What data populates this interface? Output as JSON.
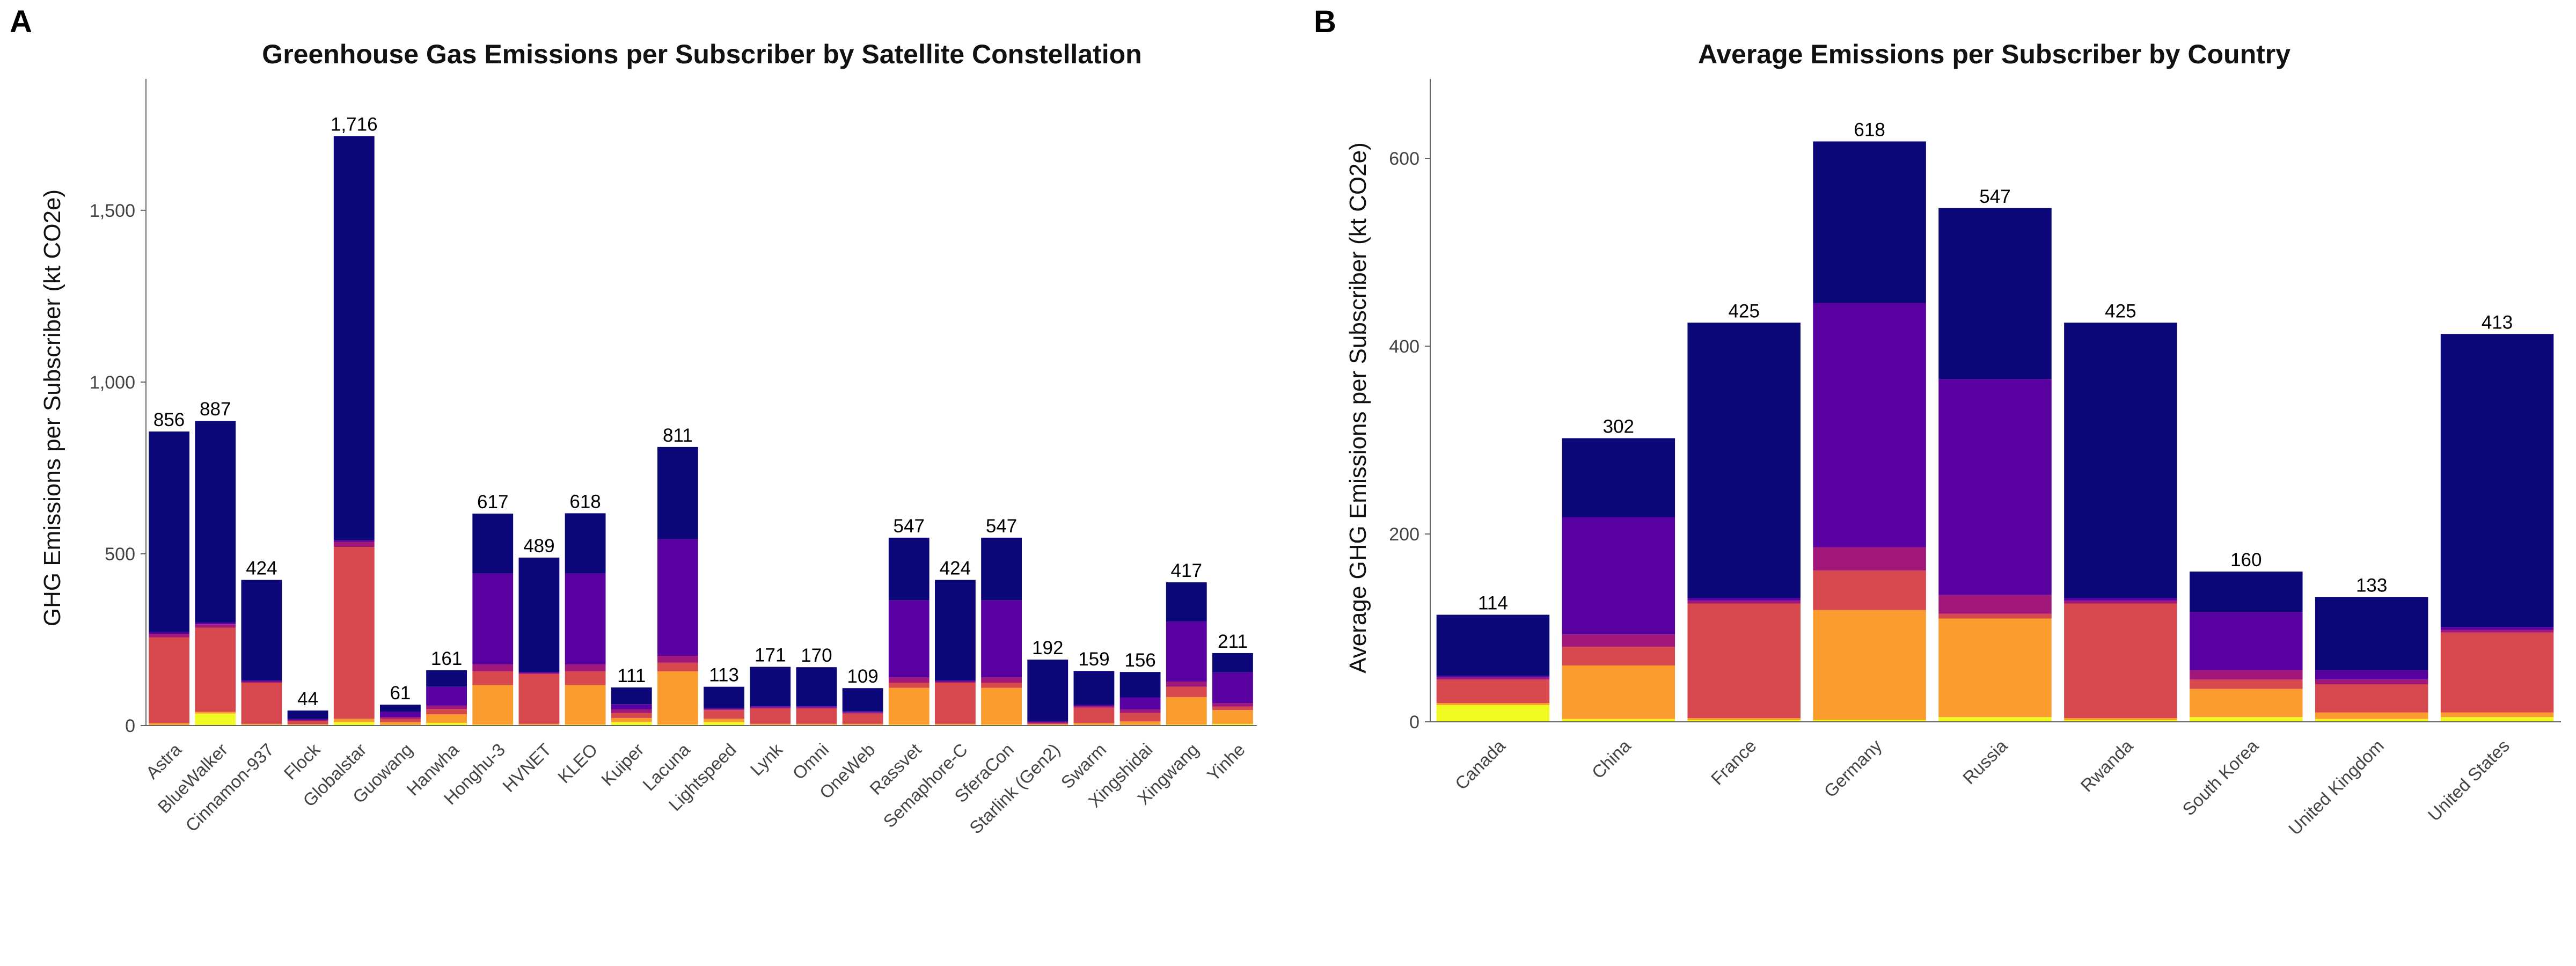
{
  "colors": {
    "segments": [
      "#F0F921",
      "#FA9C2E",
      "#D6474E",
      "#A2177A",
      "#5901A0",
      "#0C0778"
    ]
  },
  "panel_a": {
    "letter": "A"
  },
  "panel_b": {
    "letter": "B"
  },
  "chart_data": [
    {
      "type": "bar",
      "stacked": true,
      "title": "Greenhouse Gas Emissions per Subscriber by Satellite Constellation",
      "xlabel": "",
      "ylabel": "GHG Emissions per Subscriber (kt CO2e)",
      "ylim": [
        0,
        1870
      ],
      "yticks": [
        0,
        500,
        1000,
        1500
      ],
      "ytick_labels": [
        "0",
        "500",
        "1,000",
        "1,500"
      ],
      "grid": false,
      "categories": [
        "Astra",
        "BlueWalker",
        "Cinnamon-937",
        "Flock",
        "Globalstar",
        "Guowang",
        "Hanwha",
        "Honghu-3",
        "HVNET",
        "KLEO",
        "Kuiper",
        "Lacuna",
        "Lightspeed",
        "Lynk",
        "Omni",
        "OneWeb",
        "Rassvet",
        "Semaphore-C",
        "SferaCon",
        "Starlink (Gen2)",
        "Swarm",
        "Xingshidai",
        "Xingwang",
        "Yinhe"
      ],
      "totals": [
        856,
        887,
        424,
        44,
        1716,
        61,
        161,
        617,
        489,
        618,
        111,
        811,
        113,
        171,
        170,
        109,
        547,
        424,
        547,
        192,
        159,
        156,
        417,
        211
      ],
      "total_labels": [
        "856",
        "887",
        "424",
        "44",
        "1,716",
        "61",
        "161",
        "617",
        "489",
        "618",
        "111",
        "811",
        "113",
        "171",
        "170",
        "109",
        "547",
        "424",
        "547",
        "192",
        "159",
        "156",
        "417",
        "211"
      ],
      "series": [
        {
          "values": [
            2,
            35,
            2,
            2,
            10,
            2,
            8,
            3,
            2,
            3,
            10,
            3,
            10,
            2,
            2,
            2,
            3,
            2,
            3,
            2,
            2,
            2,
            3,
            5
          ]
        },
        {
          "values": [
            5,
            5,
            3,
            2,
            10,
            8,
            25,
            115,
            3,
            115,
            12,
            155,
            10,
            3,
            3,
            3,
            107,
            3,
            107,
            2,
            5,
            10,
            80,
            40
          ]
        },
        {
          "values": [
            250,
            245,
            120,
            10,
            500,
            10,
            15,
            40,
            145,
            40,
            15,
            25,
            25,
            45,
            45,
            30,
            15,
            120,
            15,
            3,
            45,
            25,
            30,
            10
          ]
        },
        {
          "values": [
            10,
            10,
            3,
            2,
            15,
            5,
            10,
            20,
            3,
            20,
            10,
            20,
            3,
            3,
            3,
            3,
            15,
            3,
            15,
            3,
            5,
            10,
            15,
            10
          ]
        },
        {
          "values": [
            5,
            5,
            3,
            3,
            5,
            15,
            55,
            265,
            3,
            265,
            15,
            340,
            3,
            3,
            3,
            3,
            225,
            3,
            225,
            3,
            3,
            35,
            175,
            90
          ]
        },
        {
          "values": [
            584,
            587,
            293,
            25,
            1176,
            21,
            48,
            174,
            333,
            175,
            49,
            268,
            62,
            115,
            114,
            68,
            182,
            293,
            182,
            179,
            99,
            74,
            114,
            56
          ]
        }
      ]
    },
    {
      "type": "bar",
      "stacked": true,
      "title": "Average Emissions per Subscriber by Country",
      "xlabel": "",
      "ylabel": "Average GHG Emissions per Subscriber (kt CO2e)",
      "ylim": [
        0,
        680
      ],
      "yticks": [
        0,
        200,
        400,
        600
      ],
      "ytick_labels": [
        "0",
        "200",
        "400",
        "600"
      ],
      "grid": false,
      "categories": [
        "Canada",
        "China",
        "France",
        "Germany",
        "Russia",
        "Rwanda",
        "South Korea",
        "United Kingdom",
        "United States"
      ],
      "totals": [
        114,
        302,
        425,
        618,
        547,
        425,
        160,
        133,
        413
      ],
      "total_labels": [
        "114",
        "302",
        "425",
        "618",
        "547",
        "425",
        "160",
        "133",
        "413"
      ],
      "series": [
        {
          "values": [
            18,
            3,
            2,
            2,
            5,
            2,
            5,
            3,
            5
          ]
        },
        {
          "values": [
            2,
            57,
            2,
            117,
            105,
            2,
            30,
            7,
            5
          ]
        },
        {
          "values": [
            25,
            20,
            122,
            42,
            5,
            122,
            10,
            30,
            85
          ]
        },
        {
          "values": [
            2,
            13,
            3,
            25,
            20,
            3,
            10,
            5,
            3
          ]
        },
        {
          "values": [
            2,
            125,
            3,
            260,
            230,
            3,
            62,
            10,
            3
          ]
        },
        {
          "values": [
            65,
            84,
            293,
            172,
            182,
            293,
            43,
            78,
            312
          ]
        }
      ]
    }
  ]
}
